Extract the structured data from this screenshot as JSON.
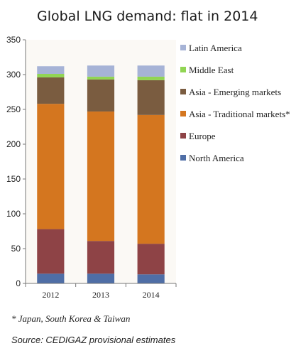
{
  "chart_data": {
    "type": "bar",
    "stacked": true,
    "title": "Global LNG demand: flat in 2014",
    "categories": [
      "2012",
      "2013",
      "2014"
    ],
    "ylim": [
      0,
      350
    ],
    "yticks": [
      0,
      50,
      100,
      150,
      200,
      250,
      300,
      350
    ],
    "grid": false,
    "legend_position": "right",
    "series": [
      {
        "name": "North America",
        "color": "#4f6ea6",
        "values": [
          14,
          14,
          13
        ]
      },
      {
        "name": "Europe",
        "color": "#8e4346",
        "values": [
          64,
          47,
          44
        ]
      },
      {
        "name": "Asia - Traditional markets*",
        "color": "#d4761f",
        "values": [
          180,
          186,
          185
        ]
      },
      {
        "name": "Asia - Emerging markets",
        "color": "#7a5c40",
        "values": [
          38,
          46,
          50
        ]
      },
      {
        "name": "Middle East",
        "color": "#91d553",
        "values": [
          5,
          4,
          5
        ]
      },
      {
        "name": "Latin America",
        "color": "#a6b3d6",
        "values": [
          11,
          16,
          16
        ]
      }
    ],
    "legend_order": [
      "Latin America",
      "Middle East",
      "Asia - Emerging markets",
      "Asia - Traditional markets*",
      "Europe",
      "North America"
    ],
    "footnote": "* Japan, South Korea & Taiwan",
    "source": "Source: CEDIGAZ provisional estimates"
  }
}
